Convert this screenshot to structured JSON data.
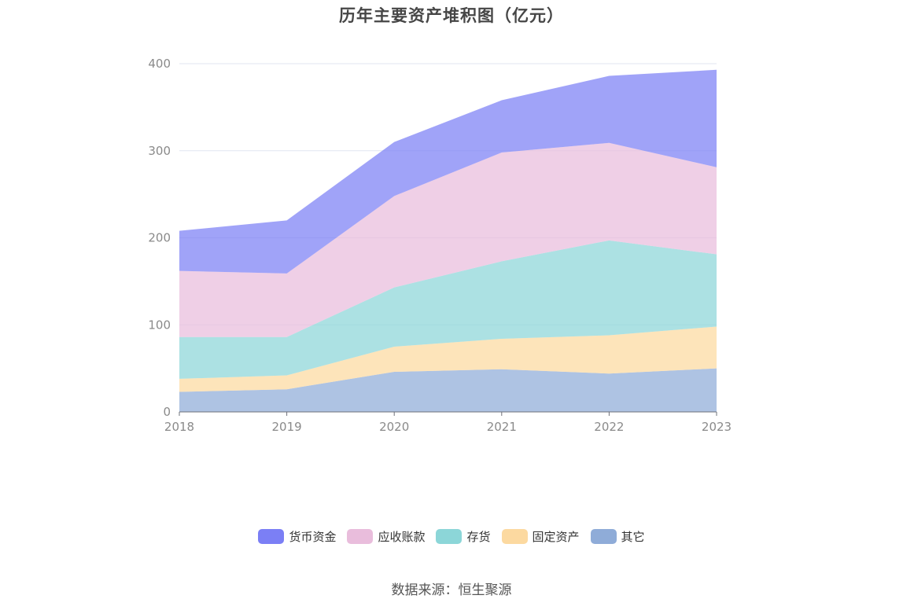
{
  "chart_data": {
    "type": "area",
    "stacked": true,
    "title": "历年主要资产堆积图（亿元）",
    "x": [
      "2018",
      "2019",
      "2020",
      "2021",
      "2022",
      "2023"
    ],
    "ylim": [
      0,
      400
    ],
    "yticks": [
      0,
      100,
      200,
      300,
      400
    ],
    "grid": true,
    "legend_position": "bottom",
    "series": [
      {
        "name": "其它",
        "color": "#8facd8",
        "values": [
          23,
          26,
          46,
          49,
          44,
          50
        ]
      },
      {
        "name": "固定资产",
        "color": "#fcd9a0",
        "values": [
          15,
          16,
          29,
          35,
          44,
          48
        ]
      },
      {
        "name": "存货",
        "color": "#8cd6d8",
        "values": [
          48,
          44,
          68,
          89,
          109,
          83
        ]
      },
      {
        "name": "应收账款",
        "color": "#e9bddc",
        "values": [
          76,
          73,
          105,
          125,
          112,
          100
        ]
      },
      {
        "name": "货币资金",
        "color": "#7b7ff5",
        "values": [
          46,
          61,
          62,
          60,
          77,
          112
        ]
      }
    ],
    "legend_order": [
      "货币资金",
      "应收账款",
      "存货",
      "固定资产",
      "其它"
    ]
  },
  "source_text": "数据来源：恒生聚源"
}
